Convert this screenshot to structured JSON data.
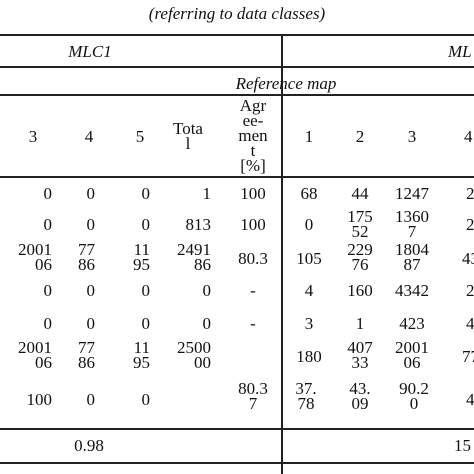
{
  "caption": "(referring to data classes)",
  "groups": {
    "left": "MLC1",
    "right": "ML"
  },
  "subheader": "Reference map",
  "left_columns": [
    "3",
    "4",
    "5",
    "Tota\nl",
    "Agr\nee-\nmen\nt\n[%]"
  ],
  "right_columns": [
    "1",
    "2",
    "3",
    "4"
  ],
  "rows": [
    {
      "left": [
        "0",
        "0",
        "0",
        "1",
        "100"
      ],
      "right": [
        "68",
        "44",
        "1247",
        "2"
      ]
    },
    {
      "left": [
        "0",
        "0",
        "0",
        "813",
        "100"
      ],
      "right": [
        "0",
        "175\n52",
        "1360\n7",
        "2"
      ]
    },
    {
      "left": [
        "2001\n06",
        "77\n86",
        "11\n95",
        "2491\n86",
        "80.3"
      ],
      "right": [
        "105",
        "229\n76",
        "1804\n87",
        "43"
      ]
    },
    {
      "left": [
        "0",
        "0",
        "0",
        "0",
        "-"
      ],
      "right": [
        "4",
        "160",
        "4342",
        "2"
      ]
    },
    {
      "left": [
        "0",
        "0",
        "0",
        "0",
        "-"
      ],
      "right": [
        "3",
        "1",
        "423",
        "4"
      ]
    },
    {
      "left": [
        "2001\n06",
        "77\n86",
        "11\n95",
        "2500\n00",
        ""
      ],
      "right": [
        "180",
        "407\n33",
        "2001\n06",
        "77"
      ]
    },
    {
      "left": [
        "100",
        "0",
        "0",
        "",
        "80.3\n7"
      ],
      "right": [
        "37.\n78",
        "43.\n09",
        "90.2\n0",
        "4"
      ]
    }
  ],
  "footer": {
    "left": "0.98",
    "right": "15"
  }
}
